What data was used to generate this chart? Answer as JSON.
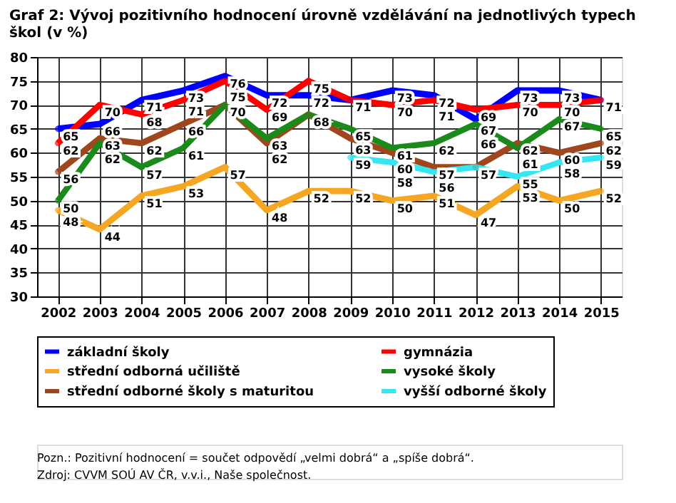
{
  "chart_data": {
    "type": "line",
    "title": "Graf 2: Vývoj pozitivního hodnocení úrovně vzdělávání na jednotlivých typech škol (v %)",
    "categories": [
      "2002",
      "2003",
      "2004",
      "2005",
      "2006",
      "2007",
      "2008",
      "2009",
      "2010",
      "2011",
      "2012",
      "2013",
      "2014",
      "2015"
    ],
    "series": [
      {
        "name": "základní školy",
        "color": "#0000ff",
        "values": [
          65,
          66,
          71,
          73,
          76,
          72,
          72,
          71,
          73,
          72,
          67,
          73,
          73,
          71
        ],
        "value_labels": [
          "65",
          "66",
          "71",
          "73",
          "76",
          "72",
          "72",
          null,
          "73",
          "72",
          "67",
          "73",
          "73",
          null
        ]
      },
      {
        "name": "střední odborná učiliště",
        "color": "#f5a623",
        "values": [
          48,
          44,
          51,
          53,
          57,
          48,
          52,
          52,
          50,
          51,
          47,
          53,
          50,
          52
        ],
        "value_labels": [
          "48",
          "44",
          "51",
          "53",
          "57",
          "48",
          "52",
          "52",
          "50",
          "51",
          "47",
          "53",
          "50",
          "52"
        ]
      },
      {
        "name": "střední odborné školy s maturitou",
        "color": "#a0461e",
        "values": [
          56,
          63,
          62,
          66,
          70,
          62,
          68,
          63,
          60,
          57,
          57,
          62,
          60,
          62
        ],
        "value_labels": [
          "56",
          "63",
          "62",
          "66",
          "70",
          "62",
          "68",
          "63",
          "60",
          "57",
          "57",
          "62",
          "60",
          "62"
        ]
      },
      {
        "name": "gymnázia",
        "color": "#ff0000",
        "values": [
          62,
          70,
          68,
          71,
          75,
          69,
          75,
          71,
          70,
          71,
          69,
          70,
          70,
          71
        ],
        "value_labels": [
          "62",
          "70",
          "68",
          "71",
          "75",
          "69",
          "75",
          "71",
          "70",
          "71",
          "69",
          "70",
          "70",
          "71"
        ]
      },
      {
        "name": "vysoké školy",
        "color": "#1a8a1a",
        "values": [
          50,
          62,
          57,
          61,
          70,
          63,
          68,
          65,
          61,
          62,
          66,
          61,
          67,
          65
        ],
        "value_labels": [
          "50",
          "62",
          "57",
          "61",
          null,
          "63",
          null,
          "65",
          "61",
          "62",
          "66",
          "61",
          "67",
          "65"
        ]
      },
      {
        "name": "vyšší odborné školy",
        "color": "#33e6f0",
        "values": [
          null,
          null,
          null,
          null,
          null,
          null,
          null,
          59,
          58,
          56,
          57,
          55,
          58,
          59
        ],
        "value_labels": [
          null,
          null,
          null,
          null,
          null,
          null,
          null,
          "59",
          "58",
          "56",
          null,
          "55",
          "58",
          "59"
        ]
      }
    ],
    "ylim": [
      30,
      80
    ],
    "yticks": [
      30,
      35,
      40,
      45,
      50,
      55,
      60,
      65,
      70,
      75,
      80
    ],
    "grid": true,
    "legend": "bottom",
    "marker": "circle",
    "data_labels": true,
    "annotations": [
      "Pozn.: Pozitivní hodnocení = součet odpovědí „velmi dobrá“ a „spíše dobrá“.",
      "Zdroj: CVVM SOÚ AV ČR, v.v.i., Naše společnost."
    ]
  }
}
